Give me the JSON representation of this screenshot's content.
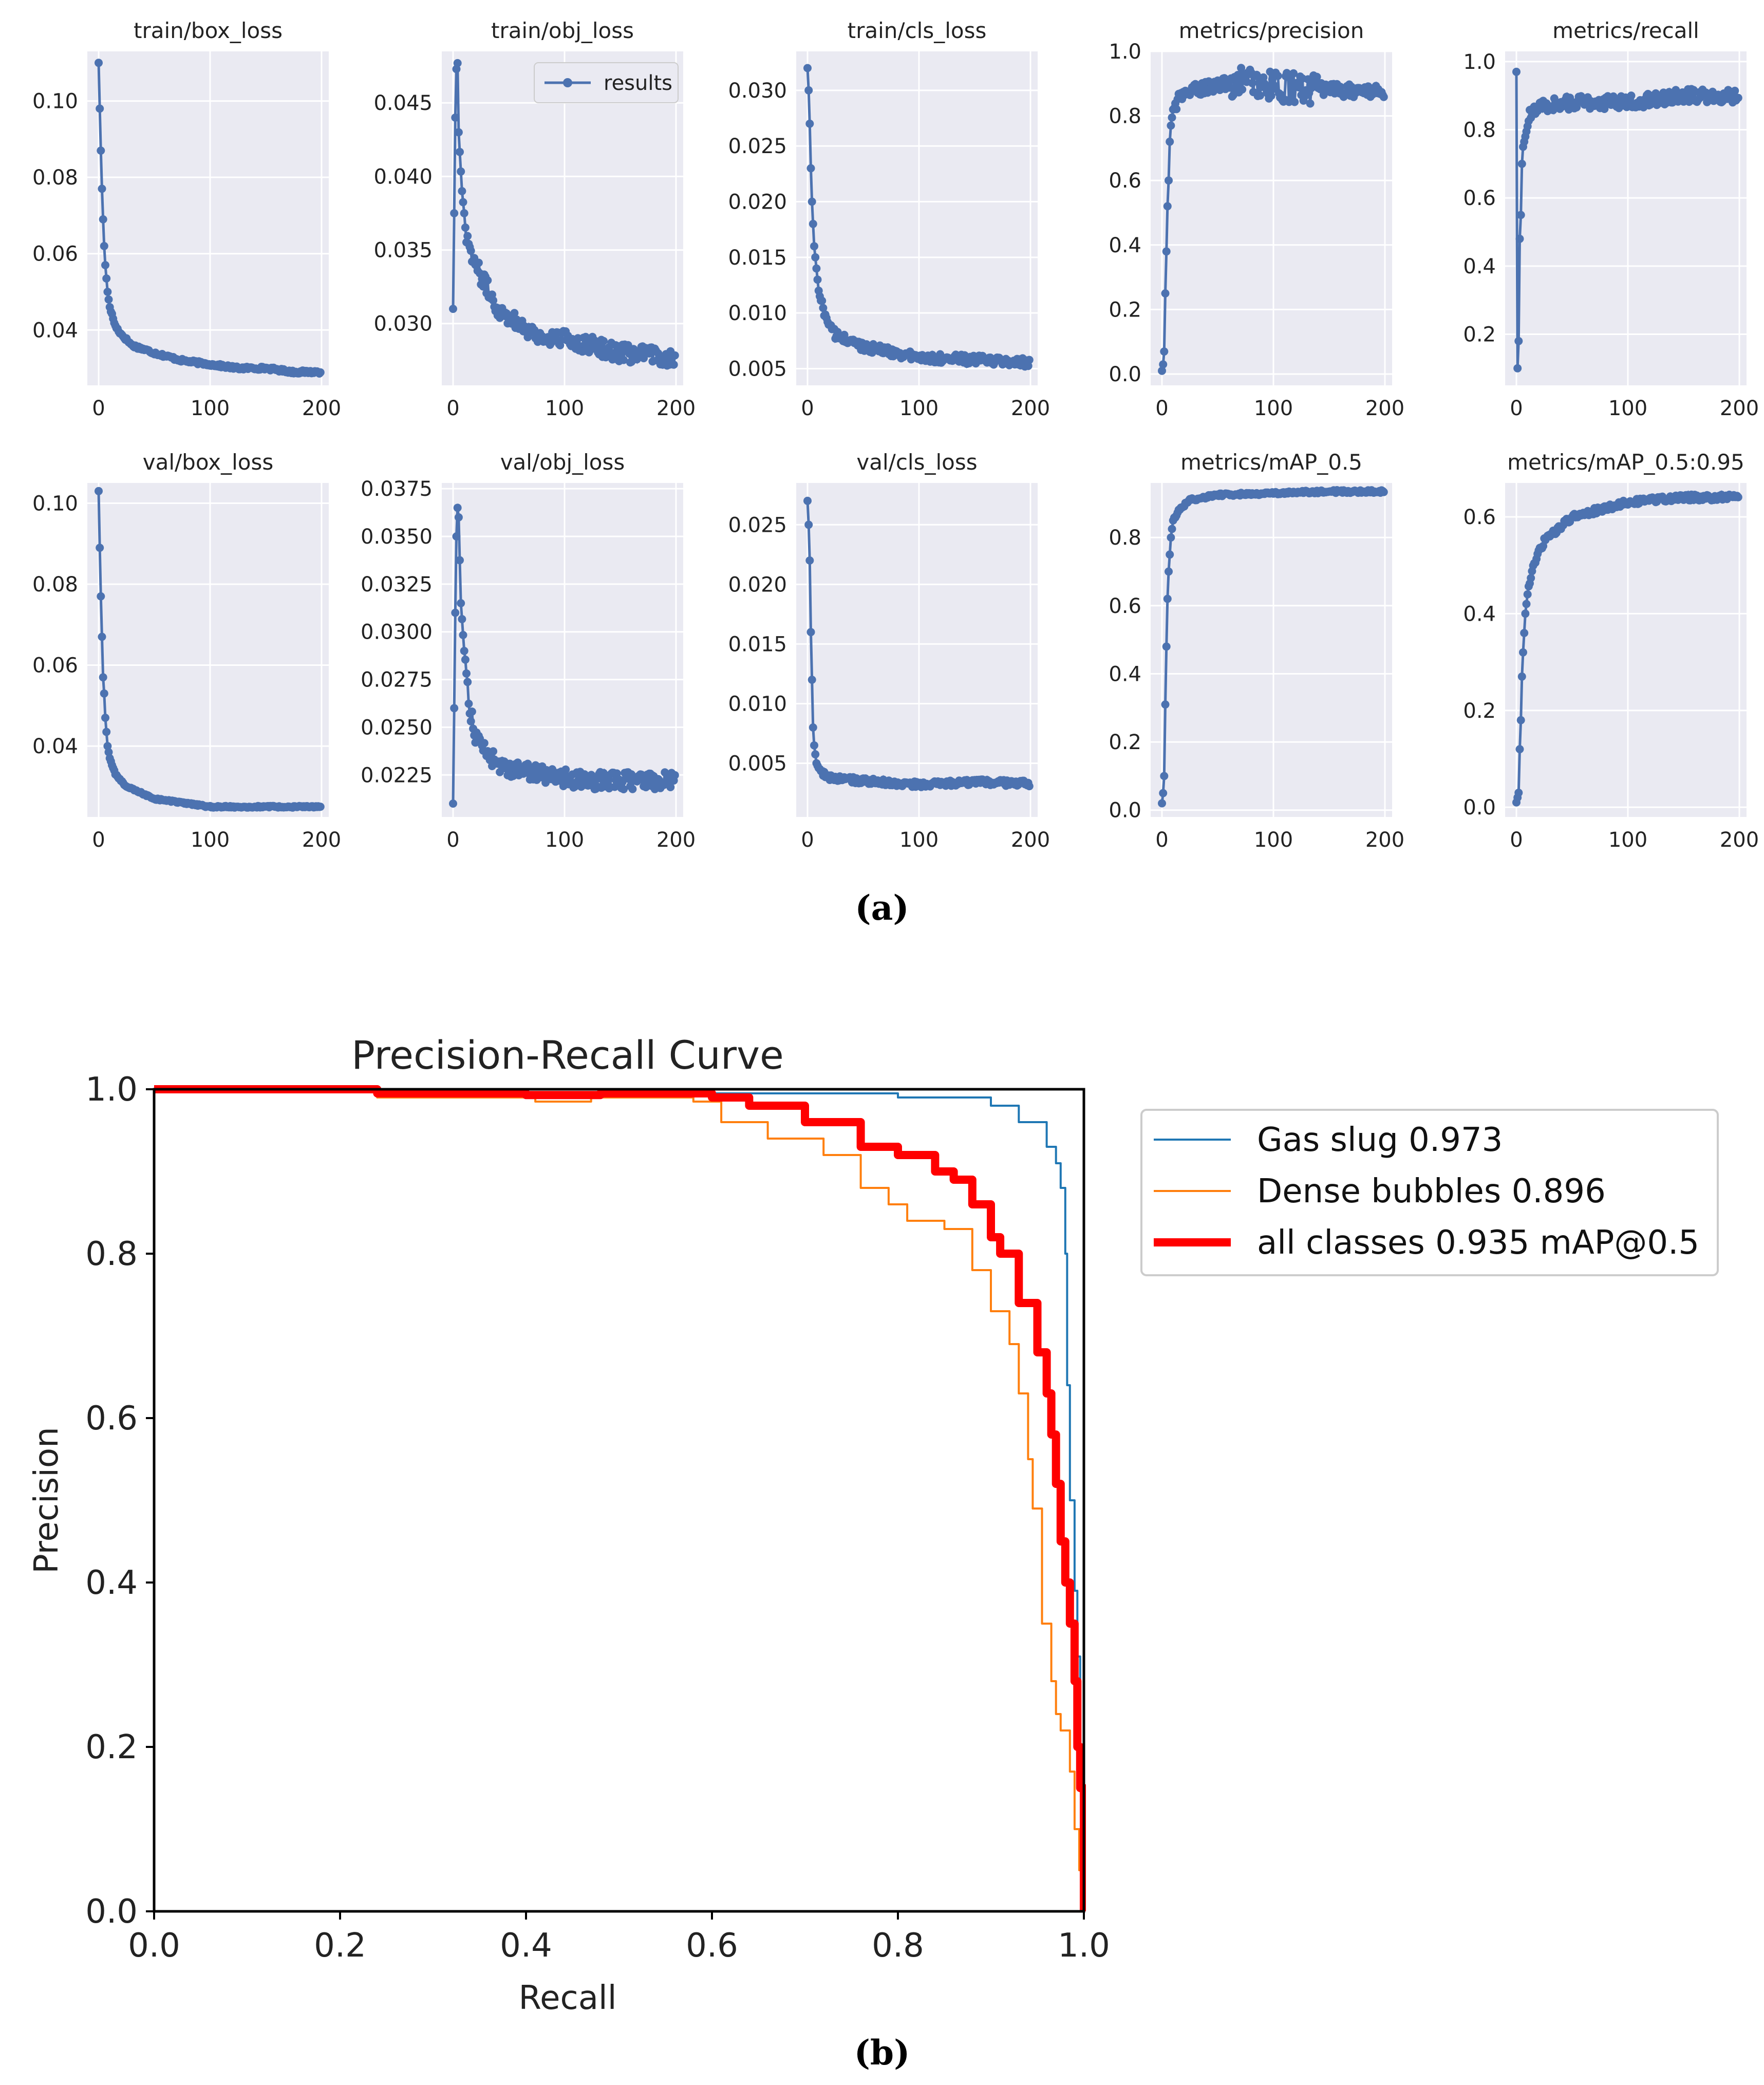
{
  "colors": {
    "panel_bg": "#eaeaf2",
    "grid": "#ffffff",
    "results_line": "#4c72b0",
    "gas_slug": "#1f77b4",
    "dense_bubbles": "#ff7f0e",
    "all_classes": "#ff0000"
  },
  "figure_a": {
    "caption": "(a)",
    "legend_label": "results",
    "x_ticks": [
      "0",
      "100",
      "200"
    ]
  },
  "figure_b": {
    "caption": "(b)"
  },
  "chart_data": [
    {
      "id": "train_box_loss",
      "type": "line",
      "title": "train/box_loss",
      "xlim": [
        0,
        200
      ],
      "ylim": [
        0.0255,
        0.113
      ],
      "yticks": [
        0.04,
        0.06,
        0.08,
        0.1
      ],
      "ytick_labels": [
        "0.04",
        "0.06",
        "0.08",
        "0.10"
      ],
      "curve": {
        "start": 0.11,
        "end": 0.029,
        "tau": 12,
        "b": 0.006,
        "c": 0.0045,
        "noise": 0.0004
      },
      "points": [
        [
          0,
          0.11
        ],
        [
          1,
          0.098
        ],
        [
          2,
          0.087
        ],
        [
          3,
          0.077
        ],
        [
          4,
          0.069
        ],
        [
          5,
          0.062
        ],
        [
          6,
          0.057
        ],
        [
          8,
          0.05
        ],
        [
          10,
          0.046
        ],
        [
          15,
          0.041
        ],
        [
          20,
          0.039
        ],
        [
          30,
          0.036
        ],
        [
          50,
          0.034
        ],
        [
          75,
          0.032
        ],
        [
          100,
          0.031
        ],
        [
          125,
          0.03
        ],
        [
          150,
          0.03
        ],
        [
          175,
          0.029
        ],
        [
          199,
          0.029
        ]
      ]
    },
    {
      "id": "train_obj_loss",
      "type": "line",
      "title": "train/obj_loss",
      "xlim": [
        0,
        200
      ],
      "ylim": [
        0.0258,
        0.0485
      ],
      "yticks": [
        0.03,
        0.035,
        0.04,
        0.045
      ],
      "ytick_labels": [
        "0.030",
        "0.035",
        "0.040",
        "0.045"
      ],
      "legend": "results",
      "curve": {
        "start": 0.0475,
        "end": 0.0275,
        "tau": 18,
        "b": 0.005,
        "c": 0.006,
        "noise": 0.0006
      },
      "points": [
        [
          0,
          0.031
        ],
        [
          1,
          0.0375
        ],
        [
          2,
          0.044
        ],
        [
          3,
          0.0473
        ],
        [
          4,
          0.0477
        ],
        [
          5,
          0.043
        ],
        [
          8,
          0.039
        ],
        [
          12,
          0.036
        ],
        [
          20,
          0.034
        ],
        [
          40,
          0.031
        ],
        [
          60,
          0.03
        ],
        [
          80,
          0.029
        ],
        [
          100,
          0.029
        ],
        [
          150,
          0.028
        ],
        [
          199,
          0.0277
        ]
      ]
    },
    {
      "id": "train_cls_loss",
      "type": "line",
      "title": "train/cls_loss",
      "xlim": [
        0,
        200
      ],
      "ylim": [
        0.0035,
        0.0335
      ],
      "yticks": [
        0.005,
        0.01,
        0.015,
        0.02,
        0.025,
        0.03
      ],
      "ytick_labels": [
        "0.005",
        "0.010",
        "0.015",
        "0.020",
        "0.025",
        "0.030"
      ],
      "curve": {
        "start": 0.032,
        "end": 0.0055,
        "tau": 9,
        "b": 0.004,
        "c": 0.003,
        "noise": 0.0004
      },
      "points": [
        [
          0,
          0.032
        ],
        [
          1,
          0.03
        ],
        [
          2,
          0.027
        ],
        [
          3,
          0.023
        ],
        [
          4,
          0.02
        ],
        [
          5,
          0.018
        ],
        [
          6,
          0.016
        ],
        [
          8,
          0.014
        ],
        [
          10,
          0.012
        ],
        [
          15,
          0.01
        ],
        [
          25,
          0.008
        ],
        [
          50,
          0.007
        ],
        [
          100,
          0.006
        ],
        [
          150,
          0.0058
        ],
        [
          199,
          0.0055
        ]
      ]
    },
    {
      "id": "metrics_precision",
      "type": "line",
      "title": "metrics/precision",
      "xlim": [
        0,
        200
      ],
      "ylim": [
        -0.035,
        1.0
      ],
      "yticks": [
        0.0,
        0.2,
        0.4,
        0.6,
        0.8,
        1.0
      ],
      "ytick_labels": [
        "0.0",
        "0.2",
        "0.4",
        "0.6",
        "0.8",
        "1.0"
      ],
      "curve": {
        "start": 0.0,
        "end": 0.89,
        "tau": 3.5,
        "noise": 0.02,
        "peak_noise": 0.03
      },
      "points": [
        [
          0,
          0.01
        ],
        [
          1,
          0.03
        ],
        [
          2,
          0.07
        ],
        [
          3,
          0.25
        ],
        [
          4,
          0.38
        ],
        [
          5,
          0.52
        ],
        [
          6,
          0.6
        ],
        [
          7,
          0.72
        ],
        [
          8,
          0.77
        ],
        [
          10,
          0.82
        ],
        [
          15,
          0.85
        ],
        [
          20,
          0.87
        ],
        [
          40,
          0.89
        ],
        [
          80,
          0.91
        ],
        [
          100,
          0.89
        ],
        [
          150,
          0.88
        ],
        [
          199,
          0.875
        ]
      ]
    },
    {
      "id": "metrics_recall",
      "type": "line",
      "title": "metrics/recall",
      "xlim": [
        0,
        200
      ],
      "ylim": [
        0.05,
        1.03
      ],
      "yticks": [
        0.2,
        0.4,
        0.6,
        0.8,
        1.0
      ],
      "ytick_labels": [
        "0.2",
        "0.4",
        "0.6",
        "0.8",
        "1.0"
      ],
      "curve": {
        "start": 0.6,
        "end": 0.89,
        "tau": 6,
        "noise": 0.02
      },
      "points": [
        [
          0,
          0.97
        ],
        [
          1,
          0.1
        ],
        [
          2,
          0.18
        ],
        [
          3,
          0.48
        ],
        [
          4,
          0.55
        ],
        [
          5,
          0.7
        ],
        [
          6,
          0.75
        ],
        [
          8,
          0.78
        ],
        [
          12,
          0.84
        ],
        [
          20,
          0.87
        ],
        [
          50,
          0.88
        ],
        [
          100,
          0.88
        ],
        [
          150,
          0.9
        ],
        [
          199,
          0.9
        ]
      ]
    },
    {
      "id": "val_box_loss",
      "type": "line",
      "title": "val/box_loss",
      "xlim": [
        0,
        200
      ],
      "ylim": [
        0.0225,
        0.105
      ],
      "yticks": [
        0.04,
        0.06,
        0.08,
        0.1
      ],
      "ytick_labels": [
        "0.04",
        "0.06",
        "0.08",
        "0.10"
      ],
      "curve": {
        "start": 0.103,
        "end": 0.025,
        "tau": 7,
        "b": 0.006,
        "c": 0.005,
        "noise": 0.0002
      },
      "points": [
        [
          0,
          0.103
        ],
        [
          1,
          0.089
        ],
        [
          2,
          0.077
        ],
        [
          3,
          0.067
        ],
        [
          4,
          0.057
        ],
        [
          5,
          0.053
        ],
        [
          6,
          0.047
        ],
        [
          8,
          0.04
        ],
        [
          10,
          0.037
        ],
        [
          15,
          0.033
        ],
        [
          25,
          0.03
        ],
        [
          50,
          0.027
        ],
        [
          100,
          0.025
        ],
        [
          150,
          0.025
        ],
        [
          199,
          0.025
        ]
      ]
    },
    {
      "id": "val_obj_loss",
      "type": "line",
      "title": "val/obj_loss",
      "xlim": [
        0,
        200
      ],
      "ylim": [
        0.0203,
        0.0378
      ],
      "yticks": [
        0.0225,
        0.025,
        0.0275,
        0.03,
        0.0325,
        0.035,
        0.0375
      ],
      "ytick_labels": [
        "0.0225",
        "0.0250",
        "0.0275",
        "0.0300",
        "0.0325",
        "0.0350",
        "0.0375"
      ],
      "curve": {
        "start": 0.0365,
        "end": 0.0222,
        "tau": 10,
        "b": 0.003,
        "c": 0.002,
        "noise": 0.00045
      },
      "points": [
        [
          0,
          0.021
        ],
        [
          1,
          0.026
        ],
        [
          2,
          0.031
        ],
        [
          3,
          0.035
        ],
        [
          4,
          0.0365
        ],
        [
          5,
          0.036
        ],
        [
          7,
          0.0315
        ],
        [
          10,
          0.029
        ],
        [
          15,
          0.026
        ],
        [
          20,
          0.0245
        ],
        [
          40,
          0.023
        ],
        [
          80,
          0.0225
        ],
        [
          120,
          0.0222
        ],
        [
          160,
          0.0222
        ],
        [
          199,
          0.0222
        ]
      ]
    },
    {
      "id": "val_cls_loss",
      "type": "line",
      "title": "val/cls_loss",
      "xlim": [
        0,
        200
      ],
      "ylim": [
        0.0005,
        0.0285
      ],
      "yticks": [
        0.005,
        0.01,
        0.015,
        0.02,
        0.025
      ],
      "ytick_labels": [
        "0.005",
        "0.010",
        "0.015",
        "0.020",
        "0.025"
      ],
      "curve": {
        "start": 0.027,
        "end": 0.0033,
        "tau": 3.2,
        "b": 0.0006,
        "c": 0.0004,
        "noise": 0.00025
      },
      "points": [
        [
          0,
          0.027
        ],
        [
          1,
          0.025
        ],
        [
          2,
          0.022
        ],
        [
          3,
          0.016
        ],
        [
          4,
          0.012
        ],
        [
          5,
          0.008
        ],
        [
          6,
          0.0065
        ],
        [
          8,
          0.005
        ],
        [
          12,
          0.0042
        ],
        [
          20,
          0.0038
        ],
        [
          50,
          0.0035
        ],
        [
          100,
          0.0032
        ],
        [
          150,
          0.0034
        ],
        [
          199,
          0.0033
        ]
      ]
    },
    {
      "id": "metrics_map_05",
      "type": "line",
      "title": "metrics/mAP_0.5",
      "xlim": [
        0,
        200
      ],
      "ylim": [
        -0.02,
        0.96
      ],
      "yticks": [
        0.0,
        0.2,
        0.4,
        0.6,
        0.8
      ],
      "ytick_labels": [
        "0.0",
        "0.2",
        "0.4",
        "0.6",
        "0.8"
      ],
      "curve": {
        "start": 0.0,
        "end": 0.935,
        "tau": 4,
        "noise": 0.004
      },
      "points": [
        [
          0,
          0.02
        ],
        [
          1,
          0.05
        ],
        [
          2,
          0.1
        ],
        [
          3,
          0.31
        ],
        [
          4,
          0.48
        ],
        [
          5,
          0.62
        ],
        [
          6,
          0.7
        ],
        [
          8,
          0.8
        ],
        [
          10,
          0.85
        ],
        [
          15,
          0.88
        ],
        [
          25,
          0.91
        ],
        [
          50,
          0.925
        ],
        [
          100,
          0.93
        ],
        [
          150,
          0.935
        ],
        [
          199,
          0.935
        ]
      ]
    },
    {
      "id": "metrics_map_05_095",
      "type": "line",
      "title": "metrics/mAP_0.5:0.95",
      "xlim": [
        0,
        200
      ],
      "ylim": [
        -0.02,
        0.67
      ],
      "yticks": [
        0.0,
        0.2,
        0.4,
        0.6
      ],
      "ytick_labels": [
        "0.0",
        "0.2",
        "0.4",
        "0.6"
      ],
      "curve": {
        "start": 0.01,
        "end": 0.64,
        "tau": 18,
        "noise": 0.006
      },
      "points": [
        [
          0,
          0.01
        ],
        [
          1,
          0.02
        ],
        [
          2,
          0.03
        ],
        [
          3,
          0.12
        ],
        [
          4,
          0.18
        ],
        [
          5,
          0.27
        ],
        [
          6,
          0.32
        ],
        [
          8,
          0.4
        ],
        [
          10,
          0.44
        ],
        [
          15,
          0.5
        ],
        [
          25,
          0.55
        ],
        [
          50,
          0.6
        ],
        [
          100,
          0.63
        ],
        [
          150,
          0.64
        ],
        [
          199,
          0.64
        ]
      ]
    },
    {
      "id": "pr_curve",
      "type": "line",
      "title": "Precision-Recall Curve",
      "xlabel": "Recall",
      "ylabel": "Precision",
      "xlim": [
        0,
        1
      ],
      "ylim": [
        0,
        1
      ],
      "xticks": [
        0.0,
        0.2,
        0.4,
        0.6,
        0.8,
        1.0
      ],
      "xtick_labels": [
        "0.0",
        "0.2",
        "0.4",
        "0.6",
        "0.8",
        "1.0"
      ],
      "yticks": [
        0.0,
        0.2,
        0.4,
        0.6,
        0.8,
        1.0
      ],
      "ytick_labels": [
        "0.0",
        "0.2",
        "0.4",
        "0.6",
        "0.8",
        "1.0"
      ],
      "legend_position": "outside-right-top",
      "series": [
        {
          "name": "Gas slug 0.973",
          "color": "#1f77b4",
          "points": [
            [
              0,
              1.0
            ],
            [
              0.6,
              0.995
            ],
            [
              0.8,
              0.99
            ],
            [
              0.88,
              0.99
            ],
            [
              0.9,
              0.98
            ],
            [
              0.93,
              0.96
            ],
            [
              0.96,
              0.93
            ],
            [
              0.97,
              0.91
            ],
            [
              0.975,
              0.88
            ],
            [
              0.98,
              0.8
            ],
            [
              0.982,
              0.64
            ],
            [
              0.985,
              0.5
            ],
            [
              0.99,
              0.39
            ],
            [
              0.993,
              0.31
            ],
            [
              0.996,
              0.2
            ],
            [
              1.0,
              0.0
            ]
          ]
        },
        {
          "name": "Dense bubbles 0.896",
          "color": "#ff7f0e",
          "points": [
            [
              0,
              1.0
            ],
            [
              0.24,
              0.99
            ],
            [
              0.41,
              0.985
            ],
            [
              0.47,
              0.99
            ],
            [
              0.58,
              0.985
            ],
            [
              0.61,
              0.96
            ],
            [
              0.66,
              0.94
            ],
            [
              0.72,
              0.92
            ],
            [
              0.76,
              0.88
            ],
            [
              0.79,
              0.86
            ],
            [
              0.81,
              0.84
            ],
            [
              0.85,
              0.83
            ],
            [
              0.88,
              0.78
            ],
            [
              0.9,
              0.73
            ],
            [
              0.92,
              0.69
            ],
            [
              0.93,
              0.63
            ],
            [
              0.94,
              0.55
            ],
            [
              0.945,
              0.49
            ],
            [
              0.955,
              0.35
            ],
            [
              0.965,
              0.28
            ],
            [
              0.97,
              0.24
            ],
            [
              0.975,
              0.22
            ],
            [
              0.985,
              0.17
            ],
            [
              0.99,
              0.1
            ],
            [
              0.995,
              0.05
            ],
            [
              1.0,
              0.0
            ]
          ]
        },
        {
          "name": "all classes 0.935 mAP@0.5",
          "color": "#ff0000",
          "points": [
            [
              0,
              1.0
            ],
            [
              0.24,
              0.995
            ],
            [
              0.4,
              0.993
            ],
            [
              0.48,
              0.995
            ],
            [
              0.6,
              0.99
            ],
            [
              0.64,
              0.98
            ],
            [
              0.7,
              0.96
            ],
            [
              0.76,
              0.93
            ],
            [
              0.8,
              0.92
            ],
            [
              0.84,
              0.9
            ],
            [
              0.86,
              0.89
            ],
            [
              0.88,
              0.86
            ],
            [
              0.9,
              0.82
            ],
            [
              0.91,
              0.8
            ],
            [
              0.93,
              0.74
            ],
            [
              0.95,
              0.68
            ],
            [
              0.96,
              0.63
            ],
            [
              0.965,
              0.58
            ],
            [
              0.97,
              0.52
            ],
            [
              0.975,
              0.45
            ],
            [
              0.98,
              0.4
            ],
            [
              0.985,
              0.35
            ],
            [
              0.99,
              0.28
            ],
            [
              0.993,
              0.2
            ],
            [
              0.996,
              0.15
            ],
            [
              1.0,
              0.0
            ]
          ]
        }
      ]
    }
  ]
}
